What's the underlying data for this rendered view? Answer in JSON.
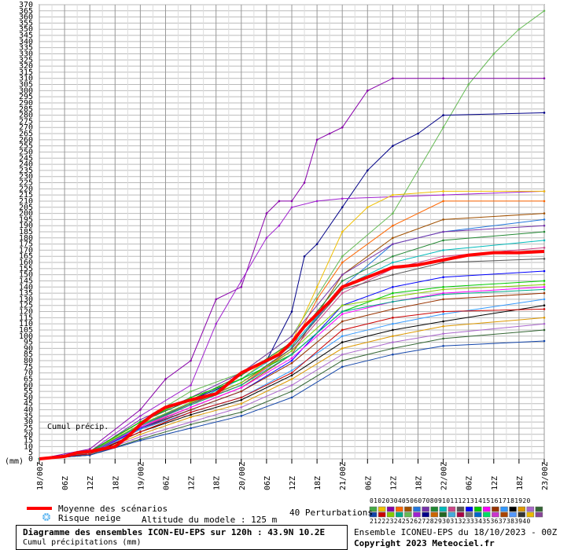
{
  "chart_data": {
    "type": "line",
    "units_label": "(mm)",
    "inner_label": "Cumul précip.",
    "ylim": [
      0,
      370
    ],
    "y_tick_step": 5,
    "x_tick_labels": [
      "18/00Z",
      "06Z",
      "12Z",
      "18Z",
      "19/00Z",
      "06Z",
      "12Z",
      "18Z",
      "20/00Z",
      "06Z",
      "12Z",
      "18Z",
      "21/00Z",
      "06Z",
      "12Z",
      "18Z",
      "22/00Z",
      "06Z",
      "12Z",
      "18Z",
      "23/00Z"
    ],
    "x_hours": [
      0,
      6,
      12,
      18,
      24,
      30,
      36,
      42,
      48,
      54,
      60,
      66,
      72,
      78,
      84,
      90,
      96,
      102,
      108,
      114,
      120
    ],
    "mean_series": {
      "name": "Moyenne des scénarios",
      "color": "#ff0000",
      "x": [
        0,
        6,
        9,
        12,
        15,
        18,
        21,
        24,
        27,
        30,
        36,
        42,
        48,
        54,
        57,
        60,
        63,
        66,
        69,
        72,
        78,
        84,
        90,
        96,
        102,
        108,
        114,
        120
      ],
      "values": [
        0,
        2,
        5,
        6,
        8,
        10,
        18,
        28,
        36,
        42,
        48,
        53,
        70,
        80,
        85,
        95,
        108,
        118,
        128,
        140,
        148,
        156,
        158,
        162,
        166,
        168,
        168,
        169
      ]
    },
    "series": [
      {
        "color": "#66bb55",
        "x": [
          0,
          12,
          24,
          36,
          48,
          60,
          72,
          84,
          96,
          102,
          108,
          114,
          120
        ],
        "values": [
          0,
          5,
          30,
          55,
          70,
          100,
          165,
          200,
          270,
          305,
          330,
          350,
          365
        ]
      },
      {
        "color": "#8800aa",
        "x": [
          0,
          12,
          24,
          30,
          36,
          42,
          48,
          54,
          57,
          60,
          63,
          66,
          69,
          72,
          78,
          84,
          96,
          120
        ],
        "values": [
          0,
          8,
          40,
          65,
          80,
          130,
          140,
          200,
          210,
          210,
          225,
          260,
          265,
          270,
          300,
          310,
          310,
          310
        ]
      },
      {
        "color": "#000088",
        "x": [
          0,
          12,
          24,
          36,
          48,
          54,
          60,
          63,
          66,
          72,
          78,
          84,
          90,
          96,
          120
        ],
        "values": [
          0,
          5,
          30,
          48,
          65,
          80,
          120,
          165,
          175,
          205,
          235,
          255,
          265,
          280,
          282
        ]
      },
      {
        "color": "#a020d0",
        "x": [
          0,
          12,
          24,
          36,
          42,
          48,
          54,
          57,
          60,
          66,
          72,
          96,
          120
        ],
        "values": [
          0,
          6,
          35,
          60,
          110,
          145,
          180,
          190,
          205,
          210,
          212,
          215,
          218
        ]
      },
      {
        "color": "#f0c000",
        "x": [
          0,
          12,
          24,
          36,
          48,
          60,
          66,
          72,
          78,
          84,
          96,
          120
        ],
        "values": [
          0,
          5,
          30,
          50,
          65,
          95,
          140,
          185,
          205,
          215,
          218,
          218
        ]
      },
      {
        "color": "#ff6600",
        "x": [
          0,
          12,
          24,
          36,
          48,
          60,
          66,
          72,
          84,
          96,
          120
        ],
        "values": [
          0,
          4,
          28,
          45,
          60,
          90,
          130,
          160,
          190,
          210,
          210
        ]
      },
      {
        "color": "#a05000",
        "x": [
          0,
          12,
          24,
          36,
          48,
          60,
          72,
          84,
          96,
          120
        ],
        "values": [
          0,
          4,
          25,
          42,
          58,
          85,
          150,
          180,
          195,
          200
        ]
      },
      {
        "color": "#2277dd",
        "x": [
          0,
          12,
          24,
          36,
          48,
          60,
          72,
          84,
          96,
          120
        ],
        "values": [
          0,
          5,
          28,
          45,
          62,
          90,
          140,
          175,
          185,
          195
        ]
      },
      {
        "color": "#7733aa",
        "x": [
          0,
          12,
          24,
          36,
          48,
          60,
          72,
          84,
          96,
          120
        ],
        "values": [
          0,
          5,
          32,
          50,
          70,
          100,
          150,
          175,
          185,
          190
        ]
      },
      {
        "color": "#228833",
        "x": [
          0,
          12,
          24,
          36,
          48,
          60,
          72,
          84,
          96,
          120
        ],
        "values": [
          0,
          6,
          30,
          48,
          68,
          95,
          145,
          165,
          178,
          185
        ]
      },
      {
        "color": "#00bbbb",
        "x": [
          0,
          12,
          24,
          36,
          48,
          60,
          72,
          84,
          96,
          120
        ],
        "values": [
          0,
          5,
          28,
          46,
          65,
          92,
          140,
          160,
          170,
          178
        ]
      },
      {
        "color": "#cc4488",
        "x": [
          0,
          12,
          24,
          36,
          48,
          60,
          72,
          84,
          96,
          120
        ],
        "values": [
          0,
          4,
          26,
          44,
          60,
          88,
          135,
          155,
          165,
          172
        ]
      },
      {
        "color": "#555555",
        "x": [
          0,
          12,
          24,
          36,
          48,
          60,
          72,
          84,
          96,
          120
        ],
        "values": [
          0,
          5,
          27,
          45,
          62,
          90,
          138,
          150,
          160,
          163
        ]
      },
      {
        "color": "#0000ff",
        "x": [
          0,
          12,
          24,
          36,
          48,
          60,
          72,
          84,
          96,
          120
        ],
        "values": [
          0,
          4,
          25,
          40,
          55,
          80,
          125,
          140,
          148,
          153
        ]
      },
      {
        "color": "#00cc00",
        "x": [
          0,
          12,
          24,
          36,
          48,
          60,
          72,
          84,
          96,
          120
        ],
        "values": [
          0,
          6,
          30,
          50,
          65,
          85,
          120,
          135,
          140,
          145
        ]
      },
      {
        "color": "#ff00ff",
        "x": [
          0,
          12,
          24,
          36,
          48,
          60,
          72,
          84,
          96,
          120
        ],
        "values": [
          0,
          5,
          26,
          42,
          58,
          82,
          118,
          128,
          135,
          140
        ]
      },
      {
        "color": "#993300",
        "x": [
          0,
          12,
          24,
          36,
          48,
          60,
          72,
          84,
          96,
          120
        ],
        "values": [
          0,
          4,
          24,
          40,
          55,
          78,
          112,
          122,
          130,
          135
        ]
      },
      {
        "color": "#3399ff",
        "x": [
          0,
          12,
          24,
          36,
          48,
          60,
          72,
          84,
          96,
          120
        ],
        "values": [
          0,
          4,
          24,
          38,
          50,
          72,
          100,
          110,
          118,
          130
        ]
      },
      {
        "color": "#000000",
        "x": [
          0,
          12,
          24,
          36,
          48,
          60,
          72,
          84,
          96,
          120
        ],
        "values": [
          0,
          3,
          22,
          36,
          48,
          68,
          95,
          105,
          112,
          125
        ]
      },
      {
        "color": "#dd9900",
        "x": [
          0,
          12,
          24,
          36,
          48,
          60,
          72,
          84,
          96,
          120
        ],
        "values": [
          0,
          3,
          20,
          34,
          45,
          65,
          90,
          100,
          108,
          115
        ]
      },
      {
        "color": "#aa66cc",
        "x": [
          0,
          12,
          24,
          36,
          48,
          60,
          72,
          84,
          96,
          120
        ],
        "values": [
          0,
          3,
          18,
          30,
          42,
          60,
          85,
          95,
          102,
          110
        ]
      },
      {
        "color": "#336633",
        "x": [
          0,
          12,
          24,
          36,
          48,
          60,
          72,
          84,
          96,
          120
        ],
        "values": [
          0,
          3,
          16,
          28,
          38,
          55,
          80,
          90,
          98,
          105
        ]
      },
      {
        "color": "#1144aa",
        "x": [
          0,
          12,
          24,
          36,
          48,
          60,
          72,
          84,
          96,
          120
        ],
        "values": [
          0,
          3,
          15,
          25,
          35,
          50,
          75,
          85,
          92,
          96
        ]
      },
      {
        "color": "#cc0000",
        "x": [
          0,
          12,
          24,
          36,
          48,
          60,
          72,
          84,
          96,
          120
        ],
        "values": [
          0,
          4,
          22,
          38,
          50,
          70,
          105,
          115,
          120,
          122
        ]
      },
      {
        "color": "#88cc00",
        "x": [
          0,
          12,
          24,
          36,
          48,
          60,
          72,
          84,
          96,
          120
        ],
        "values": [
          0,
          5,
          28,
          46,
          62,
          88,
          125,
          132,
          138,
          142
        ]
      },
      {
        "color": "#00aa88",
        "x": [
          0,
          12,
          24,
          36,
          48,
          60,
          72,
          84,
          96,
          120
        ],
        "values": [
          0,
          5,
          27,
          44,
          60,
          85,
          120,
          128,
          134,
          138
        ]
      }
    ]
  },
  "legend": {
    "mean_label": "Moyenne des scénarios",
    "snow_label": "Risque neige",
    "altitude_text": "Altitude du modele : 125 m",
    "perturbations_label": "40 Perturbations",
    "member_numbers_top": "0102030405060708091011121314151617181920",
    "member_numbers_bottom": "2122232425262728293031323334353637383940",
    "member_colors_top": [
      "#44aa44",
      "#f0c000",
      "#8800aa",
      "#ff6600",
      "#a05000",
      "#2277dd",
      "#7733aa",
      "#228833",
      "#00bbbb",
      "#cc4488",
      "#555555",
      "#0000ff",
      "#00cc00",
      "#ff00ff",
      "#993300",
      "#3399ff",
      "#000000",
      "#dd9900",
      "#aa66cc",
      "#336633"
    ],
    "member_colors_bottom": [
      "#1144aa",
      "#cc0000",
      "#88cc00",
      "#00aa88",
      "#66bb55",
      "#a020d0",
      "#000088",
      "#cc6600",
      "#226622",
      "#44aadd",
      "#aa0044",
      "#777777",
      "#0066cc",
      "#00dd66",
      "#cc33cc",
      "#aa4400",
      "#5599ff",
      "#333333",
      "#eebb00",
      "#884499"
    ]
  },
  "footer": {
    "title": "Diagramme des ensembles ICON-EU-EPS sur 120h : 43.9N 10.2E",
    "subtitle": "Cumul précipitations (mm)",
    "run_info": "Ensemble ICONEU-EPS du 18/10/2023 - 00Z",
    "copyright": "Copyright 2023 Meteociel.fr"
  },
  "colors": {
    "mean": "#ff0000",
    "grid": "#bbbbbb",
    "grid_major": "#888888",
    "snow_icon": "#44aaee"
  }
}
